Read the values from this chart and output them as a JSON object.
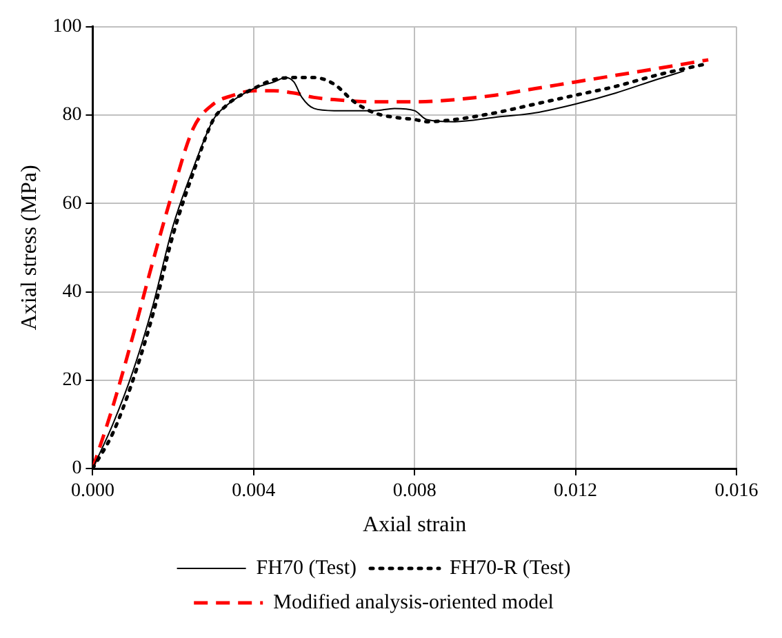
{
  "chart_data": {
    "type": "line",
    "xlabel": "Axial strain",
    "ylabel": "Axial stress (MPa)",
    "xlim": [
      0,
      0.016
    ],
    "ylim": [
      0,
      100
    ],
    "xticks": [
      {
        "value": 0,
        "label": "0.000"
      },
      {
        "value": 0.004,
        "label": "0.004"
      },
      {
        "value": 0.008,
        "label": "0.008"
      },
      {
        "value": 0.012,
        "label": "0.012"
      },
      {
        "value": 0.016,
        "label": "0.016"
      }
    ],
    "yticks": [
      0,
      20,
      40,
      60,
      80,
      100
    ],
    "grid": true,
    "legend": "bottom",
    "marker": "none",
    "series": [
      {
        "name": "FH70 (Test)",
        "color": "#000000",
        "line_style": "solid",
        "x": [
          0,
          0.0005,
          0.001,
          0.0015,
          0.002,
          0.0025,
          0.003,
          0.0033,
          0.004,
          0.0045,
          0.0048,
          0.005,
          0.0052,
          0.0055,
          0.006,
          0.007,
          0.0075,
          0.008,
          0.0083,
          0.009,
          0.01,
          0.011,
          0.012,
          0.013,
          0.014,
          0.0147
        ],
        "values": [
          0,
          10,
          22,
          37,
          55,
          68,
          79,
          82,
          86,
          87.5,
          88.5,
          87.5,
          84,
          81.5,
          81,
          81,
          81.5,
          81,
          79,
          78.5,
          79.5,
          80.5,
          82.5,
          85,
          88,
          90
        ]
      },
      {
        "name": "FH70-R (Test)",
        "color": "#000000",
        "line_style": "dotted",
        "x": [
          0,
          0.0005,
          0.001,
          0.0015,
          0.002,
          0.0025,
          0.003,
          0.0033,
          0.0035,
          0.004,
          0.0045,
          0.005,
          0.0055,
          0.006,
          0.0065,
          0.007,
          0.0075,
          0.008,
          0.0083,
          0.009,
          0.01,
          0.011,
          0.012,
          0.013,
          0.014,
          0.0152
        ],
        "values": [
          0,
          8,
          20,
          35,
          53,
          67,
          79,
          82,
          83.5,
          86,
          88,
          88.5,
          88.5,
          87,
          83,
          80.5,
          79.5,
          79,
          78.5,
          79,
          80.5,
          82.5,
          84.5,
          86.5,
          89,
          91.5
        ]
      },
      {
        "name": "Modified analysis-oriented model",
        "color": "#ff0000",
        "line_style": "dashed",
        "x": [
          0,
          0.0005,
          0.001,
          0.0015,
          0.002,
          0.0025,
          0.003,
          0.0035,
          0.004,
          0.0045,
          0.005,
          0.0055,
          0.006,
          0.007,
          0.008,
          0.009,
          0.01,
          0.011,
          0.012,
          0.013,
          0.014,
          0.0153
        ],
        "values": [
          0,
          14,
          30,
          47,
          63,
          77,
          82.5,
          84.5,
          85.5,
          85.5,
          85,
          84,
          83.5,
          83,
          83,
          83.5,
          84.5,
          86,
          87.5,
          89,
          90.5,
          92.5
        ]
      }
    ]
  }
}
